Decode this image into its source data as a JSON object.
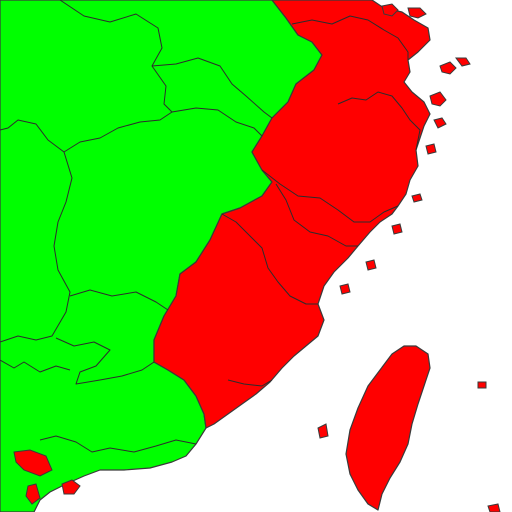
{
  "map": {
    "categories": [
      {
        "key": "group_a",
        "color": "#00ff00"
      },
      {
        "key": "group_b",
        "color": "#ff0000"
      }
    ],
    "border_color": "#333333",
    "background_color": "#ffffff"
  }
}
